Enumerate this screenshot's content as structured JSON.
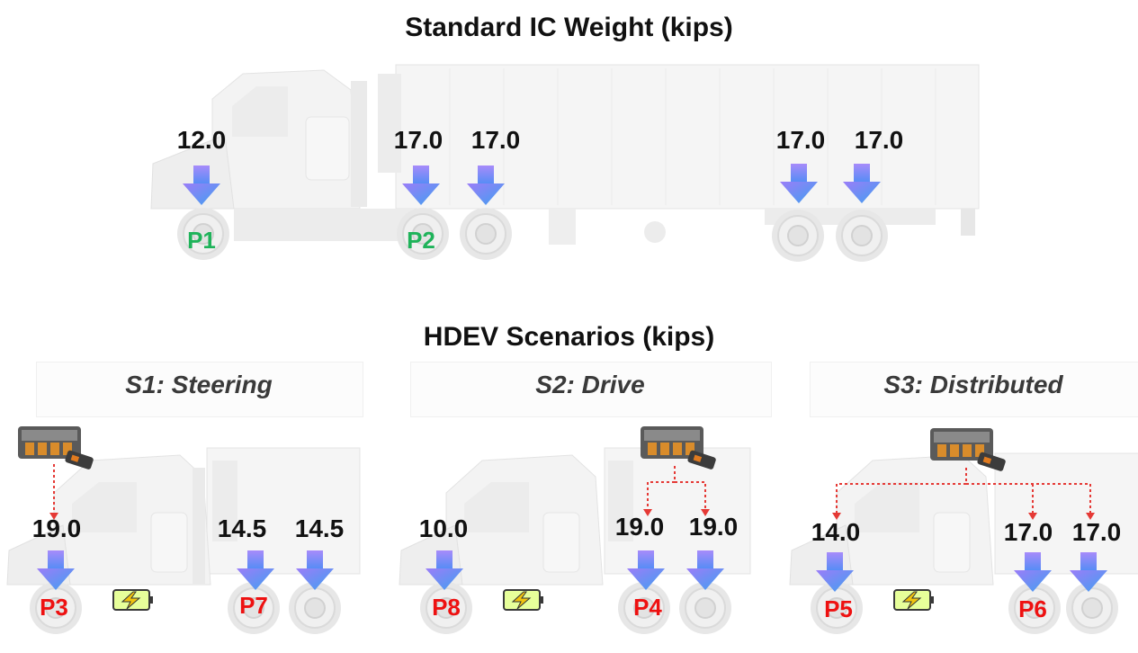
{
  "titles": {
    "top": "Standard IC Weight (kips)",
    "bottom": "HDEV Scenarios (kips)"
  },
  "top_truck": {
    "loads": [
      "12.0",
      "17.0",
      "17.0",
      "17.0",
      "17.0"
    ],
    "points": [
      "P1",
      "P2"
    ]
  },
  "scenarios": [
    {
      "title": "S1: Steering",
      "loads": [
        "19.0",
        "14.5",
        "14.5"
      ],
      "points": [
        "P3",
        "P7"
      ]
    },
    {
      "title": "S2: Drive",
      "loads": [
        "10.0",
        "19.0",
        "19.0"
      ],
      "points": [
        "P8",
        "P4"
      ]
    },
    {
      "title": "S3: Distributed",
      "loads": [
        "14.0",
        "17.0",
        "17.0"
      ],
      "points": [
        "P5",
        "P6"
      ]
    }
  ],
  "colors": {
    "point_ic": "#1fb35a",
    "point_hdev": "#ee1111",
    "arrow_top": "#a78bfa",
    "arrow_bottom": "#4f8df5",
    "battery_path": "#e53935"
  },
  "icons": [
    "battery-pack-icon",
    "charging-battery-icon",
    "load-arrow-icon"
  ]
}
